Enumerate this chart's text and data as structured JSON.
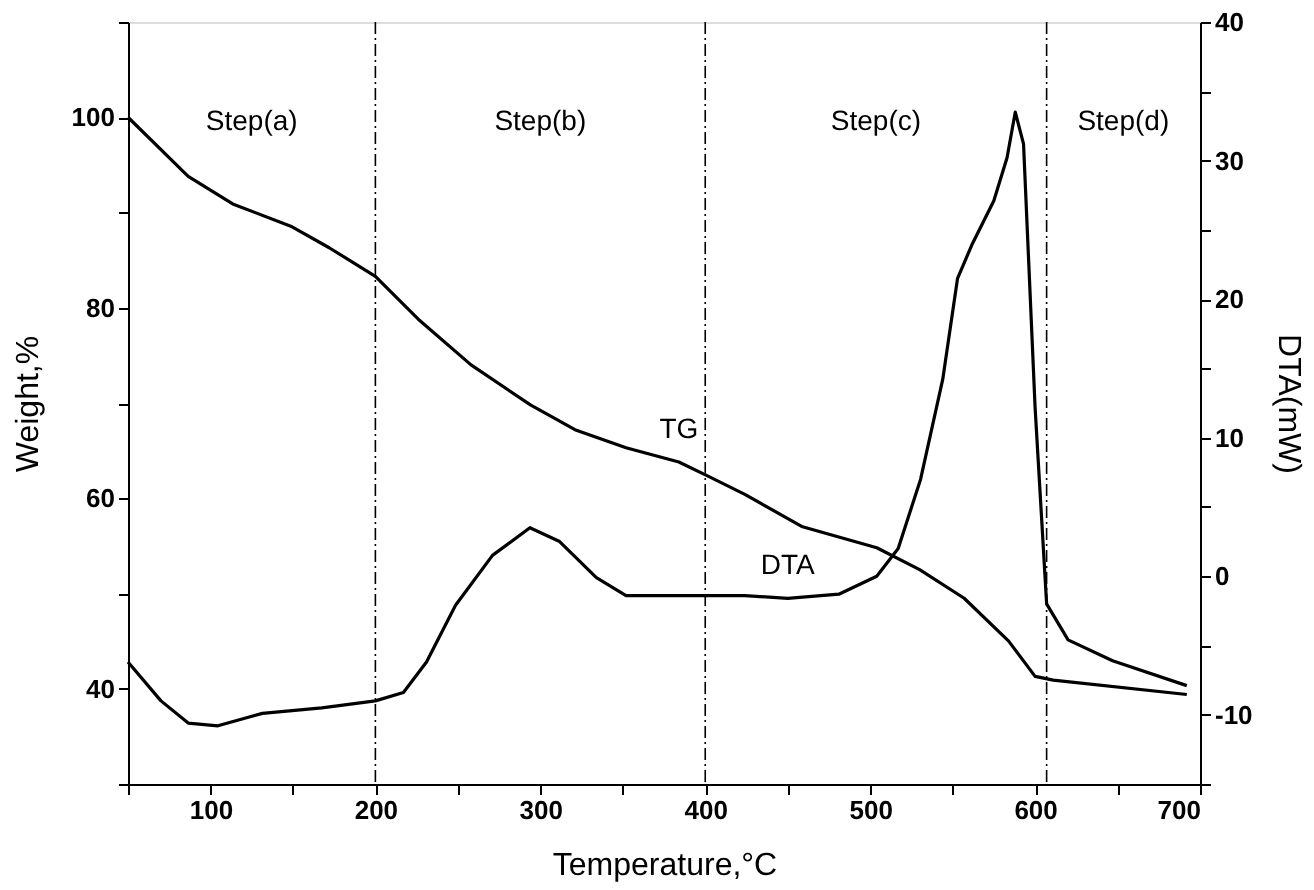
{
  "chart_data": {
    "type": "line",
    "xlabel": "Temperature,°C",
    "ylabel": "Weight,%",
    "y2label": "DTA(mW)",
    "xlim": [
      50,
      700
    ],
    "xticks": [
      {
        "value": 50,
        "label": null
      },
      100,
      {
        "value": 150,
        "label": null
      },
      200,
      {
        "value": 250,
        "label": null
      },
      300,
      {
        "value": 350,
        "label": null
      },
      400,
      {
        "value": 450,
        "label": null
      },
      500,
      {
        "value": 550,
        "label": null
      },
      600,
      {
        "value": 650,
        "label": null
      },
      700
    ],
    "ylim": [
      30,
      110
    ],
    "yticks": [
      {
        "value": 30,
        "label": null
      },
      40,
      {
        "value": 50,
        "label": null
      },
      60,
      {
        "value": 70,
        "label": null
      },
      80,
      {
        "value": 90,
        "label": null
      },
      100,
      {
        "value": 110,
        "label": null
      }
    ],
    "y2lim": [
      -15,
      40
    ],
    "y2ticks": [
      {
        "value": -15,
        "label": null
      },
      -10,
      {
        "value": -5,
        "label": null
      },
      0,
      {
        "value": 5,
        "label": null
      },
      10,
      {
        "value": 15,
        "label": null
      },
      20,
      {
        "value": 25,
        "label": null
      },
      30,
      {
        "value": 35,
        "label": null
      },
      40
    ],
    "grid": false,
    "marker": "none",
    "line_style": "solid",
    "series": [
      {
        "name": "TG",
        "color": "#000000",
        "x": [
          50,
          86.5,
          113.5,
          149.5,
          172,
          200,
          226,
          258,
          294,
          321,
          352,
          384,
          402,
          424,
          459,
          504,
          530,
          557,
          584,
          600,
          611,
          692
        ],
        "values": [
          100,
          93.8,
          90.9,
          88.5,
          86.3,
          83.3,
          78.8,
          74,
          69.8,
          67.2,
          65.3,
          63.8,
          62.3,
          60.4,
          57,
          54.8,
          52.5,
          49.5,
          45,
          41.3,
          40.9,
          39.4
        ]
      },
      {
        "name": "DTA",
        "color": "#000000",
        "axis": "y2",
        "x": [
          50,
          70,
          86.5,
          104.5,
          131.5,
          167.5,
          200,
          217,
          231,
          248.6,
          271,
          293.7,
          311.7,
          334,
          352,
          424,
          450,
          481,
          504,
          517,
          530.6,
          544,
          553,
          562,
          575,
          583,
          588,
          593,
          600,
          607,
          620,
          647,
          692
        ],
        "values": [
          -6.2,
          -9.0,
          -10.6,
          -10.8,
          -9.9,
          -9.5,
          -9.0,
          -8.4,
          -6.2,
          -2.1,
          1.5,
          3.5,
          2.5,
          -0.1,
          -1.4,
          -1.4,
          -1.6,
          -1.3,
          0,
          2.0,
          7.0,
          14.2,
          21.5,
          24.0,
          27.1,
          30.2,
          33.5,
          31.2,
          12.2,
          -2.0,
          -4.6,
          -6.1,
          -7.9
        ]
      }
    ],
    "ref_lines": [
      {
        "axis": "x",
        "value": 200,
        "color": "#000000",
        "line_style": "dashdot"
      },
      {
        "axis": "x",
        "value": 400,
        "color": "#000000",
        "line_style": "dashdot"
      },
      {
        "axis": "x",
        "value": 607,
        "color": "#000000",
        "line_style": "dashdot"
      }
    ],
    "annotations": [
      "Step(a)",
      "Step(b)",
      "Step(c)",
      "Step(d)"
    ]
  }
}
